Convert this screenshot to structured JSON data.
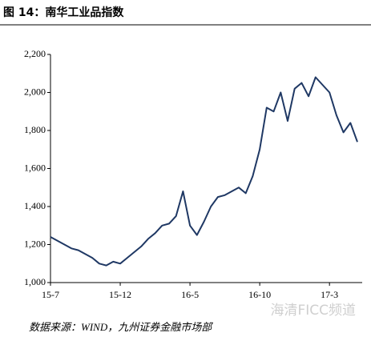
{
  "chart_data": {
    "type": "line",
    "title": "图 14：南华工业品指数",
    "source": "数据来源：WIND，九州证券金融市场部",
    "watermark": "海清FICC频道",
    "categories": [
      "15-7",
      null,
      null,
      null,
      null,
      null,
      null,
      null,
      null,
      null,
      "15-12",
      null,
      null,
      null,
      null,
      null,
      null,
      null,
      null,
      null,
      "16-5",
      null,
      null,
      null,
      null,
      null,
      null,
      null,
      null,
      null,
      "16-10",
      null,
      null,
      null,
      null,
      null,
      null,
      null,
      null,
      null,
      "17-3",
      null,
      null,
      null,
      null
    ],
    "values": [
      1240,
      1220,
      1200,
      1180,
      1170,
      1150,
      1130,
      1100,
      1090,
      1110,
      1100,
      1130,
      1160,
      1190,
      1230,
      1260,
      1300,
      1310,
      1350,
      1480,
      1300,
      1250,
      1320,
      1400,
      1450,
      1460,
      1480,
      1500,
      1470,
      1560,
      1700,
      1920,
      1900,
      2000,
      1850,
      2020,
      2050,
      1980,
      2080,
      2040,
      2000,
      1880,
      1790,
      1840,
      1740
    ],
    "color": "#1f3864",
    "ylim": [
      1000,
      2200
    ],
    "yticks": [
      {
        "value": 1000,
        "label": "1,000"
      },
      {
        "value": 1200,
        "label": "1,200"
      },
      {
        "value": 1400,
        "label": "1,400"
      },
      {
        "value": 1600,
        "label": "1,600"
      },
      {
        "value": 1800,
        "label": "1,800"
      },
      {
        "value": 2000,
        "label": "2,000"
      },
      {
        "value": 2200,
        "label": "2,200"
      }
    ],
    "grid": false
  }
}
